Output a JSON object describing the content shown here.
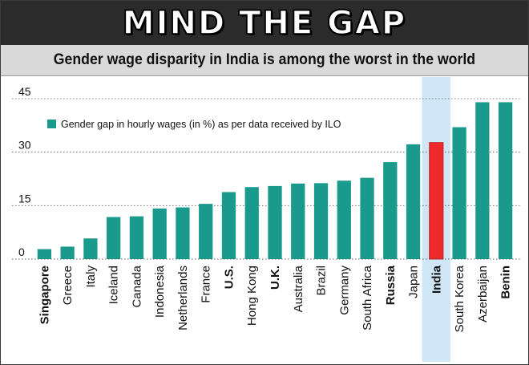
{
  "banner": {
    "title": "MIND THE GAP"
  },
  "subtitle": "Gender wage disparity in India is among the worst in the world",
  "chart_data": {
    "type": "bar",
    "title": "MIND THE GAP",
    "subtitle": "Gender wage disparity in India is among the worst in the world",
    "xlabel": "",
    "ylabel": "",
    "ylim": [
      0,
      45
    ],
    "yticks": [
      0,
      15,
      30,
      45
    ],
    "grid": "horizontal dotted",
    "legend": {
      "placement": "top-left",
      "label": "Gender gap in hourly wages (in %) as per data received by ILO",
      "color": "#1a9a8c"
    },
    "bar_color": "#1a9a8c",
    "highlight": {
      "category": "India",
      "bar_color": "#ee2a2a",
      "band_color": "#cfe6f6"
    },
    "bold_categories": [
      "Singapore",
      "U.S.",
      "U.K.",
      "Russia",
      "India",
      "Benin"
    ],
    "categories": [
      "Singapore",
      "Greece",
      "Italy",
      "Iceland",
      "Canada",
      "Indonesia",
      "Netherlands",
      "France",
      "U.S.",
      "Hong Kong",
      "U.K.",
      "Australia",
      "Brazil",
      "Germany",
      "South Africa",
      "Russia",
      "Japan",
      "India",
      "South Korea",
      "Azerbaijan",
      "Benin"
    ],
    "series": [
      {
        "name": "Gender gap in hourly wages (in %) as per data received by ILO",
        "values": [
          2.8,
          3.5,
          5.8,
          11.8,
          12.0,
          14.2,
          14.5,
          15.5,
          18.8,
          20.2,
          20.5,
          21.2,
          21.3,
          22.0,
          22.8,
          27.2,
          32.2,
          32.7,
          37.0,
          44.0,
          44.0
        ]
      }
    ]
  }
}
